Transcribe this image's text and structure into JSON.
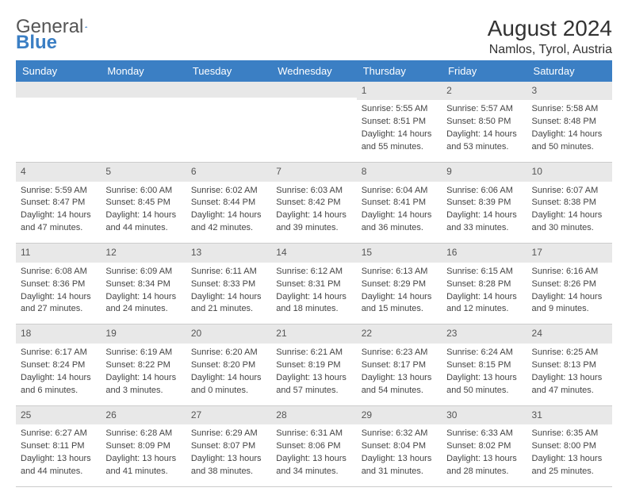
{
  "logo": {
    "part1": "General",
    "part2": "Blue"
  },
  "title": "August 2024",
  "location": "Namlos, Tyrol, Austria",
  "colors": {
    "header_bg": "#3b7fc4",
    "header_text": "#ffffff",
    "daynum_bg": "#e8e8e8",
    "border": "#cccccc"
  },
  "dayNames": [
    "Sunday",
    "Monday",
    "Tuesday",
    "Wednesday",
    "Thursday",
    "Friday",
    "Saturday"
  ],
  "weeks": [
    [
      null,
      null,
      null,
      null,
      {
        "n": "1",
        "sunrise": "5:55 AM",
        "sunset": "8:51 PM",
        "dl1": "14 hours",
        "dl2": "and 55 minutes."
      },
      {
        "n": "2",
        "sunrise": "5:57 AM",
        "sunset": "8:50 PM",
        "dl1": "14 hours",
        "dl2": "and 53 minutes."
      },
      {
        "n": "3",
        "sunrise": "5:58 AM",
        "sunset": "8:48 PM",
        "dl1": "14 hours",
        "dl2": "and 50 minutes."
      }
    ],
    [
      {
        "n": "4",
        "sunrise": "5:59 AM",
        "sunset": "8:47 PM",
        "dl1": "14 hours",
        "dl2": "and 47 minutes."
      },
      {
        "n": "5",
        "sunrise": "6:00 AM",
        "sunset": "8:45 PM",
        "dl1": "14 hours",
        "dl2": "and 44 minutes."
      },
      {
        "n": "6",
        "sunrise": "6:02 AM",
        "sunset": "8:44 PM",
        "dl1": "14 hours",
        "dl2": "and 42 minutes."
      },
      {
        "n": "7",
        "sunrise": "6:03 AM",
        "sunset": "8:42 PM",
        "dl1": "14 hours",
        "dl2": "and 39 minutes."
      },
      {
        "n": "8",
        "sunrise": "6:04 AM",
        "sunset": "8:41 PM",
        "dl1": "14 hours",
        "dl2": "and 36 minutes."
      },
      {
        "n": "9",
        "sunrise": "6:06 AM",
        "sunset": "8:39 PM",
        "dl1": "14 hours",
        "dl2": "and 33 minutes."
      },
      {
        "n": "10",
        "sunrise": "6:07 AM",
        "sunset": "8:38 PM",
        "dl1": "14 hours",
        "dl2": "and 30 minutes."
      }
    ],
    [
      {
        "n": "11",
        "sunrise": "6:08 AM",
        "sunset": "8:36 PM",
        "dl1": "14 hours",
        "dl2": "and 27 minutes."
      },
      {
        "n": "12",
        "sunrise": "6:09 AM",
        "sunset": "8:34 PM",
        "dl1": "14 hours",
        "dl2": "and 24 minutes."
      },
      {
        "n": "13",
        "sunrise": "6:11 AM",
        "sunset": "8:33 PM",
        "dl1": "14 hours",
        "dl2": "and 21 minutes."
      },
      {
        "n": "14",
        "sunrise": "6:12 AM",
        "sunset": "8:31 PM",
        "dl1": "14 hours",
        "dl2": "and 18 minutes."
      },
      {
        "n": "15",
        "sunrise": "6:13 AM",
        "sunset": "8:29 PM",
        "dl1": "14 hours",
        "dl2": "and 15 minutes."
      },
      {
        "n": "16",
        "sunrise": "6:15 AM",
        "sunset": "8:28 PM",
        "dl1": "14 hours",
        "dl2": "and 12 minutes."
      },
      {
        "n": "17",
        "sunrise": "6:16 AM",
        "sunset": "8:26 PM",
        "dl1": "14 hours",
        "dl2": "and 9 minutes."
      }
    ],
    [
      {
        "n": "18",
        "sunrise": "6:17 AM",
        "sunset": "8:24 PM",
        "dl1": "14 hours",
        "dl2": "and 6 minutes."
      },
      {
        "n": "19",
        "sunrise": "6:19 AM",
        "sunset": "8:22 PM",
        "dl1": "14 hours",
        "dl2": "and 3 minutes."
      },
      {
        "n": "20",
        "sunrise": "6:20 AM",
        "sunset": "8:20 PM",
        "dl1": "14 hours",
        "dl2": "and 0 minutes."
      },
      {
        "n": "21",
        "sunrise": "6:21 AM",
        "sunset": "8:19 PM",
        "dl1": "13 hours",
        "dl2": "and 57 minutes."
      },
      {
        "n": "22",
        "sunrise": "6:23 AM",
        "sunset": "8:17 PM",
        "dl1": "13 hours",
        "dl2": "and 54 minutes."
      },
      {
        "n": "23",
        "sunrise": "6:24 AM",
        "sunset": "8:15 PM",
        "dl1": "13 hours",
        "dl2": "and 50 minutes."
      },
      {
        "n": "24",
        "sunrise": "6:25 AM",
        "sunset": "8:13 PM",
        "dl1": "13 hours",
        "dl2": "and 47 minutes."
      }
    ],
    [
      {
        "n": "25",
        "sunrise": "6:27 AM",
        "sunset": "8:11 PM",
        "dl1": "13 hours",
        "dl2": "and 44 minutes."
      },
      {
        "n": "26",
        "sunrise": "6:28 AM",
        "sunset": "8:09 PM",
        "dl1": "13 hours",
        "dl2": "and 41 minutes."
      },
      {
        "n": "27",
        "sunrise": "6:29 AM",
        "sunset": "8:07 PM",
        "dl1": "13 hours",
        "dl2": "and 38 minutes."
      },
      {
        "n": "28",
        "sunrise": "6:31 AM",
        "sunset": "8:06 PM",
        "dl1": "13 hours",
        "dl2": "and 34 minutes."
      },
      {
        "n": "29",
        "sunrise": "6:32 AM",
        "sunset": "8:04 PM",
        "dl1": "13 hours",
        "dl2": "and 31 minutes."
      },
      {
        "n": "30",
        "sunrise": "6:33 AM",
        "sunset": "8:02 PM",
        "dl1": "13 hours",
        "dl2": "and 28 minutes."
      },
      {
        "n": "31",
        "sunrise": "6:35 AM",
        "sunset": "8:00 PM",
        "dl1": "13 hours",
        "dl2": "and 25 minutes."
      }
    ]
  ]
}
